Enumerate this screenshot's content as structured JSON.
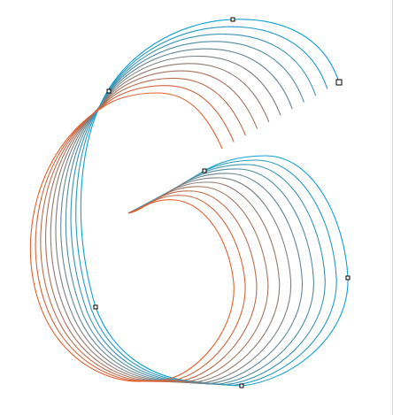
{
  "artwork": {
    "name": "blend-spiral",
    "step_count": 11,
    "start_color": "#0ea0d6",
    "end_color": "#e8602c"
  },
  "colors": {
    "background": "#ffffff",
    "handle_fill": "#ffffff",
    "handle_stroke": "#000000",
    "edge_line": "#d9d9d9"
  }
}
